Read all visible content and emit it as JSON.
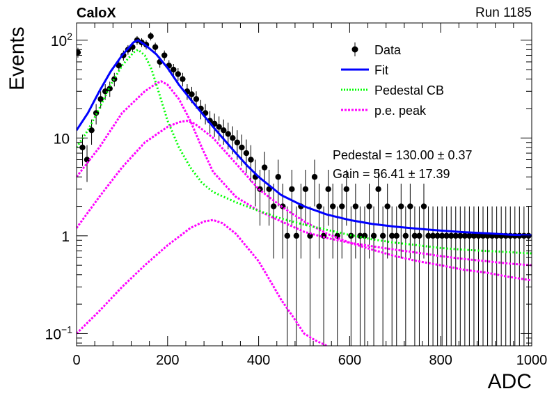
{
  "header": {
    "experiment": "CaloX",
    "run_label": "Run 1185"
  },
  "chart_data": {
    "type": "scatter",
    "xlabel": "ADC",
    "ylabel": "Events",
    "xlim": [
      0,
      1000
    ],
    "ylim": [
      0.075,
      150
    ],
    "yscale": "log",
    "x_ticks": [
      "0",
      "200",
      "400",
      "600",
      "800",
      "1000"
    ],
    "y_ticks": [
      {
        "value": 0.1,
        "base": "10",
        "exp": "−1"
      },
      {
        "value": 1,
        "base": "1",
        "exp": ""
      },
      {
        "value": 10,
        "base": "10",
        "exp": ""
      },
      {
        "value": 100,
        "base": "10",
        "exp": "2"
      }
    ],
    "legend_position": "top-right",
    "legend": [
      {
        "label": "Data",
        "style": "marker",
        "color": "#000000"
      },
      {
        "label": "Fit",
        "style": "solid",
        "color": "#0000ff"
      },
      {
        "label": "Pedestal CB",
        "style": "dotted",
        "color": "#00ff00"
      },
      {
        "label": "p.e. peak",
        "style": "dashed",
        "color": "#ff00ff"
      }
    ],
    "annotations": [
      "Pedestal = 130.00 ± 0.37",
      "Gain = 56.41 ± 17.39"
    ],
    "data_points": [
      [
        0,
        75
      ],
      [
        10,
        8
      ],
      [
        20,
        6
      ],
      [
        30,
        12
      ],
      [
        40,
        18
      ],
      [
        50,
        25
      ],
      [
        60,
        30
      ],
      [
        70,
        32
      ],
      [
        80,
        40
      ],
      [
        90,
        55
      ],
      [
        100,
        70
      ],
      [
        110,
        80
      ],
      [
        120,
        85
      ],
      [
        130,
        100
      ],
      [
        140,
        95
      ],
      [
        150,
        90
      ],
      [
        160,
        110
      ],
      [
        170,
        85
      ],
      [
        180,
        60
      ],
      [
        190,
        70
      ],
      [
        200,
        55
      ],
      [
        210,
        50
      ],
      [
        220,
        45
      ],
      [
        230,
        40
      ],
      [
        240,
        30
      ],
      [
        250,
        28
      ],
      [
        260,
        25
      ],
      [
        270,
        20
      ],
      [
        280,
        18
      ],
      [
        290,
        15
      ],
      [
        300,
        14
      ],
      [
        310,
        13
      ],
      [
        320,
        12
      ],
      [
        330,
        11
      ],
      [
        340,
        10
      ],
      [
        350,
        9
      ],
      [
        360,
        8
      ],
      [
        370,
        7
      ],
      [
        380,
        6
      ],
      [
        390,
        4
      ],
      [
        400,
        3
      ],
      [
        410,
        5
      ],
      [
        420,
        3
      ],
      [
        430,
        2
      ],
      [
        440,
        4
      ],
      [
        450,
        2
      ],
      [
        460,
        1
      ],
      [
        470,
        3
      ],
      [
        480,
        1
      ],
      [
        490,
        2
      ],
      [
        500,
        3
      ],
      [
        510,
        1
      ],
      [
        520,
        4
      ],
      [
        530,
        2
      ],
      [
        540,
        1
      ],
      [
        550,
        3
      ],
      [
        560,
        2
      ],
      [
        570,
        1
      ],
      [
        580,
        2
      ],
      [
        590,
        3
      ],
      [
        600,
        1
      ],
      [
        610,
        2
      ],
      [
        620,
        1
      ],
      [
        630,
        1
      ],
      [
        640,
        2
      ],
      [
        650,
        1
      ],
      [
        660,
        3
      ],
      [
        670,
        1
      ],
      [
        680,
        2
      ],
      [
        690,
        1
      ],
      [
        700,
        1
      ],
      [
        710,
        2
      ],
      [
        720,
        1
      ],
      [
        730,
        2
      ],
      [
        740,
        1
      ],
      [
        750,
        1
      ],
      [
        760,
        2
      ],
      [
        770,
        1
      ],
      [
        780,
        1
      ],
      [
        790,
        1
      ],
      [
        800,
        1
      ],
      [
        810,
        1
      ],
      [
        820,
        1
      ],
      [
        830,
        1
      ],
      [
        840,
        1
      ],
      [
        850,
        1
      ],
      [
        860,
        1
      ],
      [
        870,
        1
      ],
      [
        880,
        1
      ],
      [
        890,
        1
      ],
      [
        900,
        1
      ],
      [
        910,
        1
      ],
      [
        920,
        1
      ],
      [
        930,
        1
      ],
      [
        940,
        1
      ],
      [
        950,
        1
      ],
      [
        960,
        1
      ],
      [
        970,
        1
      ],
      [
        980,
        1
      ],
      [
        990,
        1
      ]
    ],
    "fit_curve": [
      [
        0,
        12
      ],
      [
        25,
        18
      ],
      [
        50,
        30
      ],
      [
        75,
        48
      ],
      [
        100,
        70
      ],
      [
        125,
        95
      ],
      [
        135,
        100
      ],
      [
        150,
        90
      ],
      [
        175,
        72
      ],
      [
        200,
        52
      ],
      [
        225,
        35
      ],
      [
        250,
        25
      ],
      [
        275,
        18
      ],
      [
        300,
        13
      ],
      [
        325,
        9.5
      ],
      [
        350,
        7
      ],
      [
        375,
        5.2
      ],
      [
        400,
        4
      ],
      [
        450,
        2.6
      ],
      [
        500,
        2
      ],
      [
        550,
        1.65
      ],
      [
        600,
        1.45
      ],
      [
        650,
        1.32
      ],
      [
        700,
        1.24
      ],
      [
        750,
        1.18
      ],
      [
        800,
        1.13
      ],
      [
        850,
        1.09
      ],
      [
        900,
        1.06
      ],
      [
        950,
        1.03
      ],
      [
        1000,
        1.01
      ]
    ],
    "pedestal_curve": [
      [
        0,
        8
      ],
      [
        25,
        12
      ],
      [
        50,
        20
      ],
      [
        75,
        35
      ],
      [
        100,
        55
      ],
      [
        125,
        75
      ],
      [
        135,
        80
      ],
      [
        150,
        70
      ],
      [
        165,
        50
      ],
      [
        180,
        30
      ],
      [
        200,
        15
      ],
      [
        225,
        8
      ],
      [
        250,
        5
      ],
      [
        275,
        3.5
      ],
      [
        300,
        2.8
      ],
      [
        350,
        2.2
      ],
      [
        400,
        1.8
      ],
      [
        450,
        1.5
      ],
      [
        500,
        1.3
      ],
      [
        550,
        1.15
      ],
      [
        600,
        1.02
      ],
      [
        650,
        0.92
      ],
      [
        700,
        0.85
      ],
      [
        750,
        0.8
      ],
      [
        800,
        0.75
      ],
      [
        850,
        0.72
      ],
      [
        900,
        0.7
      ],
      [
        950,
        0.68
      ],
      [
        1000,
        0.66
      ]
    ],
    "pe_peaks": [
      [
        [
          0,
          4
        ],
        [
          50,
          8
        ],
        [
          100,
          18
        ],
        [
          150,
          30
        ],
        [
          175,
          36
        ],
        [
          186,
          38
        ],
        [
          200,
          35
        ],
        [
          225,
          25
        ],
        [
          250,
          15
        ],
        [
          275,
          8
        ],
        [
          300,
          4.5
        ],
        [
          350,
          2.5
        ],
        [
          400,
          1.8
        ],
        [
          450,
          1.4
        ],
        [
          500,
          1.1
        ],
        [
          550,
          0.95
        ],
        [
          600,
          0.85
        ],
        [
          650,
          0.78
        ],
        [
          700,
          0.72
        ],
        [
          750,
          0.67
        ],
        [
          800,
          0.62
        ],
        [
          850,
          0.58
        ],
        [
          900,
          0.55
        ],
        [
          950,
          0.52
        ],
        [
          1000,
          0.5
        ]
      ],
      [
        [
          0,
          1.2
        ],
        [
          50,
          2.5
        ],
        [
          100,
          5
        ],
        [
          150,
          9
        ],
        [
          200,
          13
        ],
        [
          225,
          14.5
        ],
        [
          242,
          15
        ],
        [
          260,
          14
        ],
        [
          300,
          10
        ],
        [
          350,
          5.5
        ],
        [
          400,
          3
        ],
        [
          450,
          2
        ],
        [
          500,
          1.4
        ],
        [
          550,
          1.05
        ],
        [
          600,
          0.85
        ],
        [
          650,
          0.72
        ],
        [
          700,
          0.62
        ],
        [
          750,
          0.55
        ],
        [
          800,
          0.5
        ],
        [
          850,
          0.45
        ],
        [
          900,
          0.42
        ],
        [
          950,
          0.38
        ],
        [
          1000,
          0.35
        ]
      ],
      [
        [
          0,
          0.1
        ],
        [
          50,
          0.17
        ],
        [
          100,
          0.3
        ],
        [
          150,
          0.5
        ],
        [
          200,
          0.8
        ],
        [
          250,
          1.2
        ],
        [
          280,
          1.4
        ],
        [
          300,
          1.45
        ],
        [
          320,
          1.35
        ],
        [
          350,
          1.05
        ],
        [
          400,
          0.55
        ],
        [
          425,
          0.35
        ],
        [
          450,
          0.22
        ],
        [
          475,
          0.15
        ],
        [
          500,
          0.1
        ],
        [
          525,
          0.085
        ],
        [
          550,
          0.075
        ]
      ]
    ]
  }
}
